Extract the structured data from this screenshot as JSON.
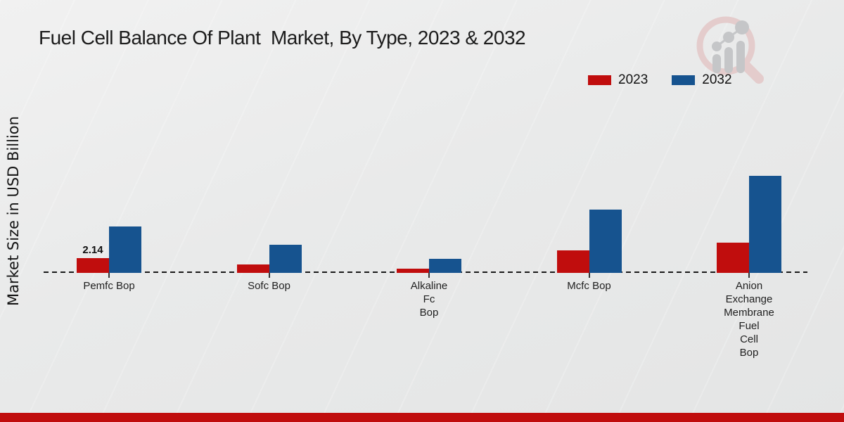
{
  "title": "Fuel Cell Balance Of Plant  Market, By Type, 2023 & 2032",
  "y_axis_label": "Market Size in USD Billion",
  "legend": [
    {
      "label": "2023",
      "color": "#c00d0d"
    },
    {
      "label": "2032",
      "color": "#16538f"
    }
  ],
  "brand": {
    "footer_bar_color": "#c00d0d"
  },
  "watermark_icon": "magnifier-bar-chart-logo",
  "chart_data": {
    "type": "bar",
    "title": "Fuel Cell Balance Of Plant  Market, By Type, 2023 & 2032",
    "xlabel": "",
    "ylabel": "Market Size in USD Billion",
    "ylim": [
      0,
      16
    ],
    "grid": false,
    "legend_position": "top-right",
    "baseline_style": "dashed",
    "categories": [
      "Pemfc Bop",
      "Sofc Bop",
      "Alkaline Fc Bop",
      "Mcfc Bop",
      "Anion Exchange Membrane Fuel Cell Bop"
    ],
    "category_label_lines": [
      [
        "Pemfc Bop"
      ],
      [
        "Sofc Bop"
      ],
      [
        "Alkaline",
        "Fc",
        "Bop"
      ],
      [
        "Mcfc Bop"
      ],
      [
        "Anion",
        "Exchange",
        "Membrane",
        "Fuel",
        "Cell",
        "Bop"
      ]
    ],
    "series": [
      {
        "name": "2023",
        "color": "#c00d0d",
        "values": [
          2.14,
          1.2,
          0.6,
          3.3,
          4.4
        ]
      },
      {
        "name": "2032",
        "color": "#16538f",
        "values": [
          6.7,
          4.1,
          2.0,
          9.2,
          14.1
        ]
      }
    ],
    "value_labels": [
      {
        "series": "2023",
        "category": "Pemfc Bop",
        "text": "2.14"
      }
    ]
  }
}
